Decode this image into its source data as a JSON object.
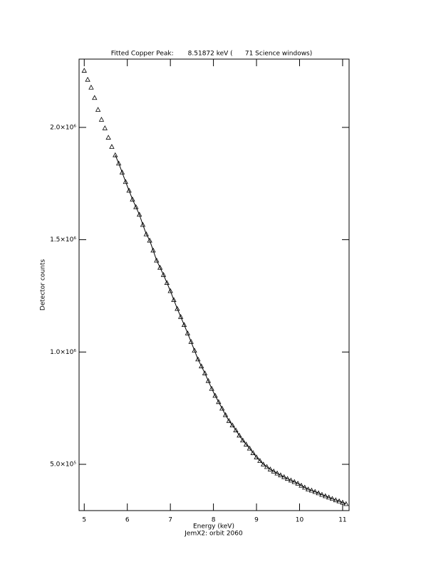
{
  "chart_data": {
    "type": "line",
    "title": "Fitted Copper Peak:       8.51872 keV (      71 Science windows)",
    "x_label": "Energy (keV)",
    "x_sublabel": "JemX2: orbit 2060",
    "y_label": "Detector counts",
    "xlim": [
      4.88,
      11.15
    ],
    "ylim": [
      294000,
      2304000
    ],
    "xticks": [
      5,
      6,
      7,
      8,
      9,
      10,
      11
    ],
    "yticks": [
      {
        "value": 500000,
        "label": "5.0×10⁵"
      },
      {
        "value": 1000000,
        "label": "1.0×10⁶"
      },
      {
        "value": 1500000,
        "label": "1.5×10⁶"
      },
      {
        "value": 2000000,
        "label": "2.0×10⁶"
      }
    ],
    "x": [
      5.0,
      5.08,
      5.16,
      5.24,
      5.32,
      5.4,
      5.48,
      5.56,
      5.64,
      5.72,
      5.8,
      5.88,
      5.96,
      6.04,
      6.12,
      6.2,
      6.28,
      6.36,
      6.44,
      6.52,
      6.6,
      6.68,
      6.76,
      6.84,
      6.92,
      7.0,
      7.08,
      7.16,
      7.24,
      7.32,
      7.4,
      7.48,
      7.56,
      7.64,
      7.72,
      7.8,
      7.88,
      7.96,
      8.04,
      8.12,
      8.2,
      8.28,
      8.36,
      8.44,
      8.52,
      8.6,
      8.68,
      8.76,
      8.84,
      8.92,
      9.0,
      9.08,
      9.16,
      9.24,
      9.32,
      9.4,
      9.48,
      9.56,
      9.64,
      9.72,
      9.8,
      9.88,
      9.96,
      10.04,
      10.12,
      10.2,
      10.28,
      10.36,
      10.44,
      10.52,
      10.6,
      10.68,
      10.76,
      10.84,
      10.92,
      11.0,
      11.08
    ],
    "series": [
      {
        "color": "#000000",
        "marker": "triangle",
        "values": [
          2253000,
          2213000,
          2178000,
          2132000,
          2079000,
          2035000,
          1997000,
          1955000,
          1914000,
          1877000,
          1840000,
          1800000,
          1758000,
          1719000,
          1680000,
          1646000,
          1612000,
          1567000,
          1525000,
          1497000,
          1453000,
          1408000,
          1376000,
          1344000,
          1308000,
          1272000,
          1232000,
          1193000,
          1157000,
          1121000,
          1084000,
          1046000,
          1007000,
          968000,
          937000,
          906000,
          872000,
          837000,
          806000,
          778000,
          749000,
          720000,
          694000,
          674000,
          652000,
          629000,
          607000,
          589000,
          571000,
          551000,
          532000,
          516000,
          500000,
          489000,
          478000,
          469000,
          460000,
          452000,
          444000,
          436000,
          429000,
          422000,
          415000,
          406000,
          397000,
          389000,
          384000,
          378000,
          372000,
          365000,
          359000,
          353000,
          347000,
          341000,
          336000,
          330000,
          324000
        ]
      },
      {
        "color": "#000000",
        "marker": "none",
        "values": [
          null,
          null,
          null,
          null,
          null,
          null,
          null,
          null,
          null,
          1877000,
          1840000,
          1800000,
          1758000,
          1719000,
          1680000,
          1646000,
          1612000,
          1567000,
          1525000,
          1497000,
          1453000,
          1408000,
          1376000,
          1344000,
          1308000,
          1272000,
          1232000,
          1193000,
          1157000,
          1121000,
          1084000,
          1046000,
          1007000,
          968000,
          937000,
          906000,
          872000,
          837000,
          806000,
          778000,
          749000,
          720000,
          694000,
          674000,
          652000,
          629000,
          607000,
          589000,
          571000,
          551000,
          532000,
          516000,
          500000,
          489000,
          478000,
          469000,
          460000,
          452000,
          444000,
          436000,
          429000,
          422000,
          415000,
          406000,
          397000,
          389000,
          384000,
          378000,
          372000,
          365000,
          359000,
          353000,
          347000,
          341000,
          336000,
          330000,
          324000
        ]
      }
    ]
  }
}
